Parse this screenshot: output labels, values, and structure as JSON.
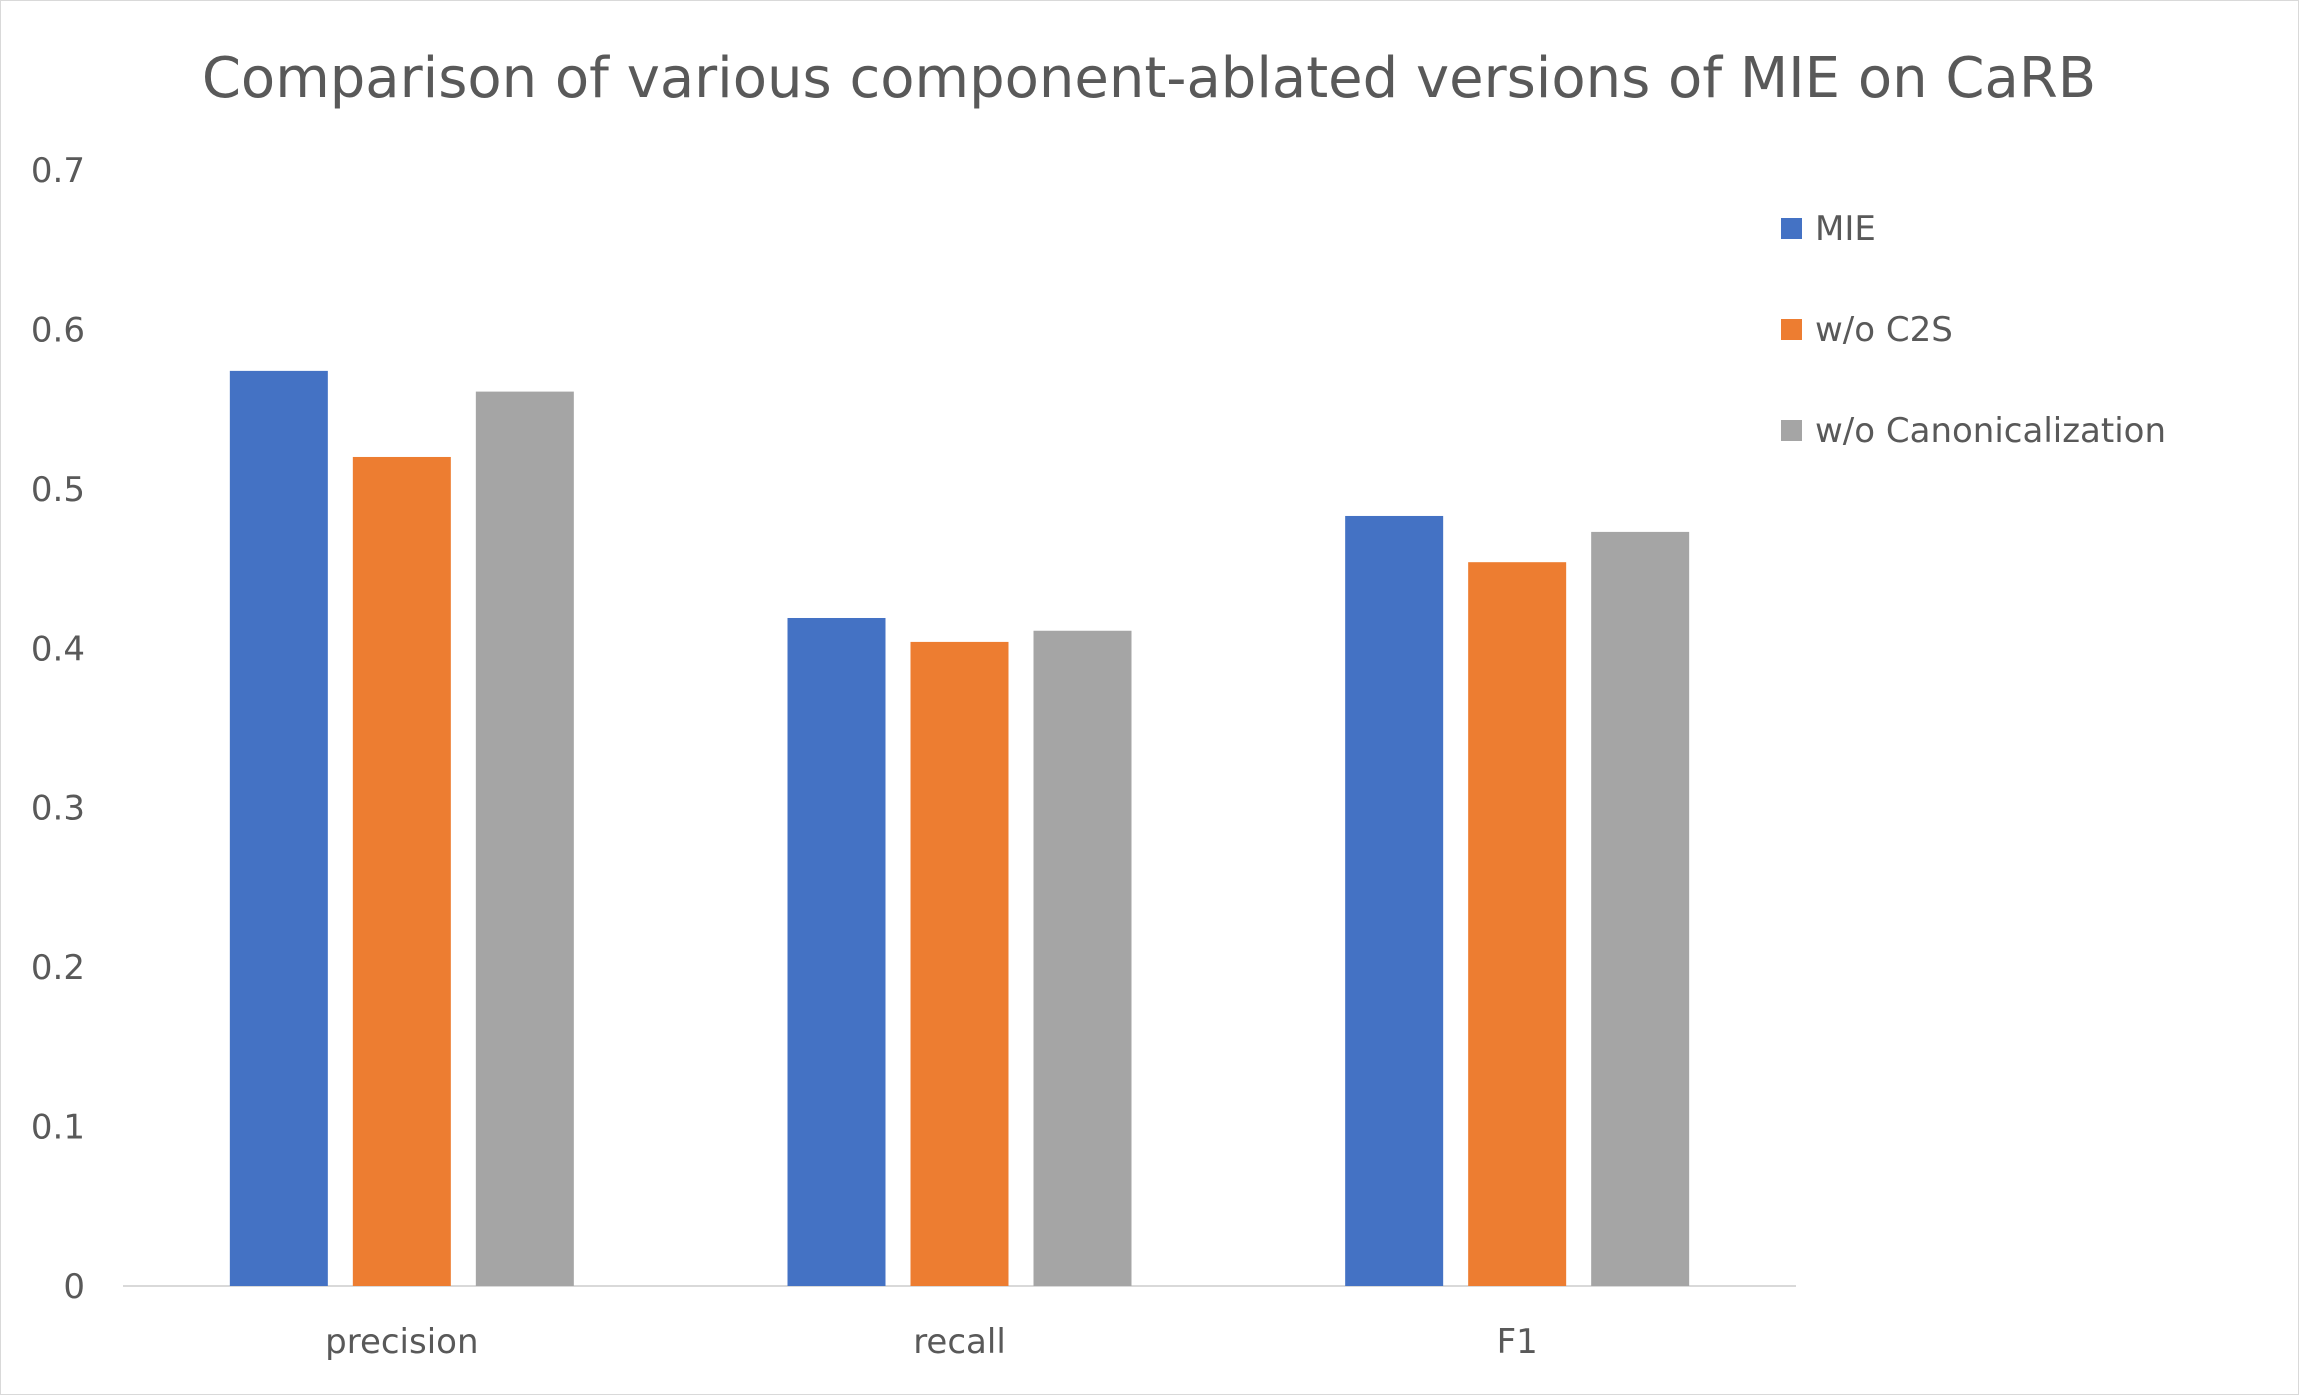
{
  "chart_data": {
    "type": "bar",
    "title": "Comparison of various component-ablated versions of MIE on CaRB",
    "xlabel": "",
    "ylabel": "",
    "categories": [
      "precision",
      "recall",
      "F1"
    ],
    "series": [
      {
        "name": "MIE",
        "values": [
          0.574,
          0.419,
          0.483
        ],
        "color": "#4472C4"
      },
      {
        "name": "w/o C2S",
        "values": [
          0.52,
          0.404,
          0.454
        ],
        "color": "#ED7D31"
      },
      {
        "name": "w/o Canonicalization",
        "values": [
          0.561,
          0.411,
          0.473
        ],
        "color": "#A5A5A5"
      }
    ],
    "ylim": [
      0,
      0.7
    ],
    "yticks": [
      "0",
      "0.1",
      "0.2",
      "0.3",
      "0.4",
      "0.5",
      "0.6",
      "0.7"
    ],
    "grid": false,
    "legend_position": "right"
  }
}
